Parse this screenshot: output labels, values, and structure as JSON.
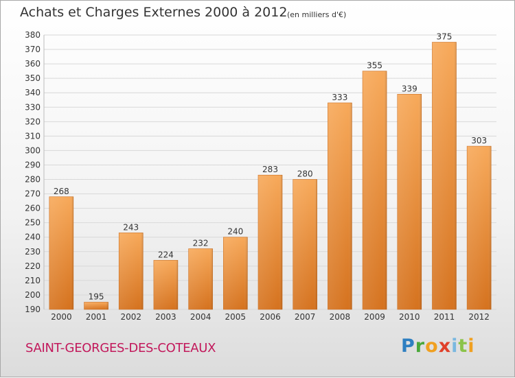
{
  "title": "Achats et Charges Externes 2000 à 2012",
  "subtitle": "(en milliers d'€)",
  "commune": "SAINT-GEORGES-DES-COTEAUX",
  "logo": {
    "letters": [
      "P",
      "r",
      "o",
      "x",
      "i",
      "t",
      "i"
    ],
    "colors": [
      "#2e7fc1",
      "#4aa83a",
      "#f0a020",
      "#e0402a",
      "#7ab8e0",
      "#8bc34a",
      "#f0a020"
    ]
  },
  "colors": {
    "bar_top": "#f7a95a",
    "bar_bottom": "#d5721e",
    "bar_stroke": "#c96a1a",
    "grid": "#d8d8d8",
    "axis_text": "#333333",
    "commune_text": "#c2185b"
  },
  "chart_data": {
    "type": "bar",
    "categories": [
      "2000",
      "2001",
      "2002",
      "2003",
      "2004",
      "2005",
      "2006",
      "2007",
      "2008",
      "2009",
      "2010",
      "2011",
      "2012"
    ],
    "values": [
      268,
      195,
      243,
      224,
      232,
      240,
      283,
      280,
      333,
      355,
      339,
      375,
      303
    ],
    "ylim": [
      190,
      380
    ],
    "yticks": [
      190,
      200,
      210,
      220,
      230,
      240,
      250,
      260,
      270,
      280,
      290,
      300,
      310,
      320,
      330,
      340,
      350,
      360,
      370,
      380
    ],
    "grid": true,
    "data_labels": true
  }
}
